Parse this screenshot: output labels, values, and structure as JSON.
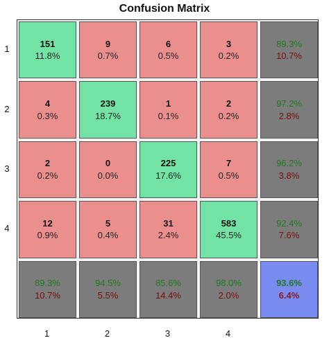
{
  "chart_data": {
    "type": "heatmap",
    "title": "Confusion Matrix",
    "row_labels": [
      "1",
      "2",
      "3",
      "4"
    ],
    "col_labels": [
      "1",
      "2",
      "3",
      "4"
    ],
    "counts": [
      [
        151,
        9,
        6,
        3
      ],
      [
        4,
        239,
        1,
        2
      ],
      [
        2,
        0,
        225,
        7
      ],
      [
        12,
        5,
        31,
        583
      ]
    ],
    "percents": [
      [
        "11.8%",
        "0.7%",
        "0.5%",
        "0.2%"
      ],
      [
        "0.3%",
        "18.7%",
        "0.1%",
        "0.2%"
      ],
      [
        "0.2%",
        "0.0%",
        "17.6%",
        "0.5%"
      ],
      [
        "0.9%",
        "0.4%",
        "2.4%",
        "45.5%"
      ]
    ],
    "row_summary": [
      {
        "correct": "89.3%",
        "incorrect": "10.7%"
      },
      {
        "correct": "97.2%",
        "incorrect": "2.8%"
      },
      {
        "correct": "96.2%",
        "incorrect": "3.8%"
      },
      {
        "correct": "92.4%",
        "incorrect": "7.6%"
      }
    ],
    "col_summary": [
      {
        "correct": "89.3%",
        "incorrect": "10.7%"
      },
      {
        "correct": "94.5%",
        "incorrect": "5.5%"
      },
      {
        "correct": "85.6%",
        "incorrect": "14.4%"
      },
      {
        "correct": "98.0%",
        "incorrect": "2.0%"
      }
    ],
    "overall": {
      "correct": "93.6%",
      "incorrect": "6.4%"
    },
    "colors": {
      "diagonal": "#72e3a4",
      "off_diagonal": "#ea8e8e",
      "summary": "#7c7c7c",
      "overall": "#7b8cf0",
      "correct_text": "#1d7a1d",
      "incorrect_text": "#8b1a1a"
    }
  }
}
